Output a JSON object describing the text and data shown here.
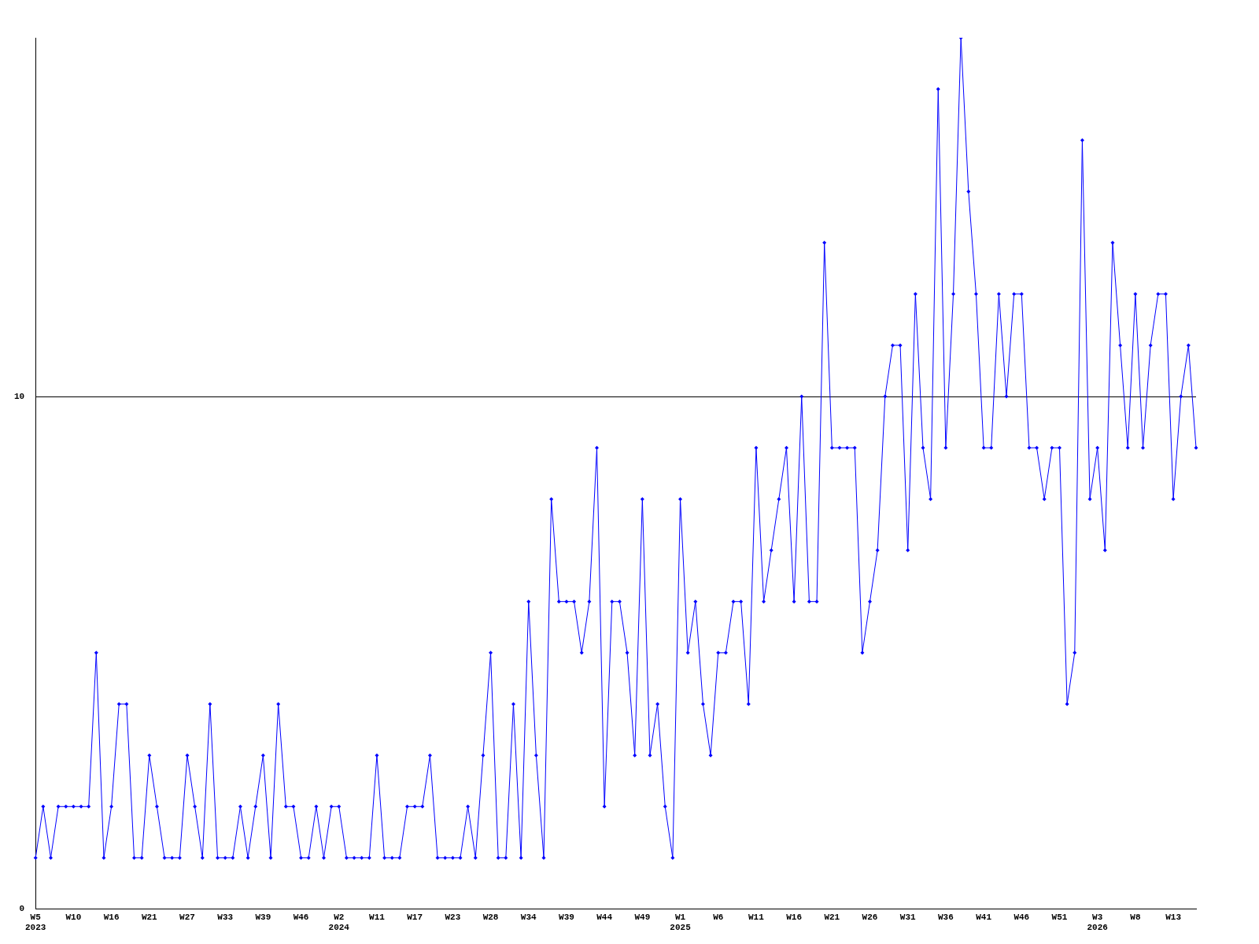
{
  "chart_data": {
    "type": "line",
    "categories": [
      "W5\n2023",
      null,
      null,
      null,
      null,
      "W10",
      null,
      null,
      null,
      null,
      "W16",
      null,
      null,
      null,
      null,
      "W21",
      null,
      null,
      null,
      null,
      "W27",
      null,
      null,
      null,
      null,
      "W33",
      null,
      null,
      null,
      null,
      "W39",
      null,
      null,
      null,
      null,
      "W46",
      null,
      null,
      null,
      null,
      "W2\n2024",
      null,
      null,
      null,
      null,
      "W11",
      null,
      null,
      null,
      null,
      "W17",
      null,
      null,
      null,
      null,
      "W23",
      null,
      null,
      null,
      null,
      "W28",
      null,
      null,
      null,
      null,
      "W34",
      null,
      null,
      null,
      null,
      "W39",
      null,
      null,
      null,
      null,
      "W44",
      null,
      null,
      null,
      null,
      "W49",
      null,
      null,
      null,
      null,
      "W1\n2025",
      null,
      null,
      null,
      null,
      "W6",
      null,
      null,
      null,
      null,
      "W11",
      null,
      null,
      null,
      null,
      "W16",
      null,
      null,
      null,
      null,
      "W21",
      null,
      null,
      null,
      null,
      "W26",
      null,
      null,
      null,
      null,
      "W31",
      null,
      null,
      null,
      null,
      "W36",
      null,
      null,
      null,
      null,
      "W41",
      null,
      null,
      null,
      null,
      "W46",
      null,
      null,
      null,
      null,
      "W51",
      null,
      null,
      null,
      null,
      "W3\n2026",
      null,
      null,
      null,
      null,
      "W8",
      null,
      null,
      null,
      null,
      "W13",
      null,
      null,
      null
    ],
    "series": [
      {
        "color": "#0000ff",
        "values": [
          1,
          2,
          1,
          2,
          2,
          2,
          2,
          2,
          5,
          1,
          2,
          4,
          4,
          1,
          1,
          3,
          2,
          1,
          1,
          1,
          3,
          2,
          1,
          4,
          1,
          1,
          1,
          2,
          1,
          2,
          3,
          1,
          4,
          2,
          2,
          1,
          1,
          2,
          1,
          2,
          2,
          1,
          1,
          1,
          1,
          3,
          1,
          1,
          1,
          2,
          2,
          2,
          3,
          1,
          1,
          1,
          1,
          2,
          1,
          3,
          5,
          1,
          1,
          4,
          1,
          6,
          3,
          1,
          8,
          6,
          6,
          6,
          5,
          6,
          9,
          2,
          6,
          6,
          5,
          3,
          8,
          3,
          4,
          2,
          1,
          8,
          5,
          6,
          4,
          3,
          5,
          5,
          6,
          6,
          4,
          9,
          6,
          7,
          8,
          9,
          6,
          10,
          6,
          6,
          13,
          9,
          9,
          9,
          9,
          5,
          6,
          7,
          10,
          11,
          11,
          7,
          12,
          9,
          8,
          16,
          9,
          12,
          17,
          14,
          12,
          9,
          9,
          12,
          10,
          12,
          12,
          9,
          9,
          8,
          9,
          9,
          4,
          5,
          15,
          8,
          9,
          7,
          13,
          11,
          9,
          12,
          9,
          11,
          12,
          12,
          8,
          10,
          11,
          9
        ]
      }
    ],
    "ylim": [
      0,
      17
    ],
    "yticks": [
      0,
      10
    ],
    "grid": "y",
    "legend": false,
    "marker": "diamond",
    "line_style": "solid"
  }
}
